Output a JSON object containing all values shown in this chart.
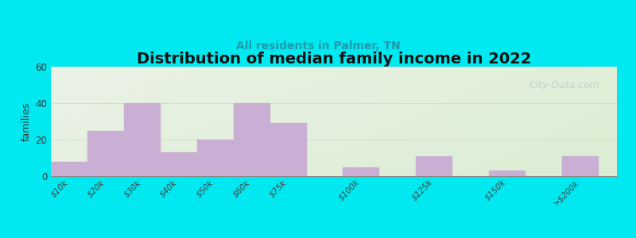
{
  "title": "Distribution of median family income in 2022",
  "subtitle": "All residents in Palmer, TN",
  "ylabel": "families",
  "categories": [
    "$10k",
    "$20k",
    "$30k",
    "$40k",
    "$50k",
    "$60k",
    "$75k",
    "$100k",
    "$125k",
    "$150k",
    ">$200k"
  ],
  "values": [
    8,
    25,
    40,
    13,
    20,
    40,
    29,
    5,
    11,
    3,
    11
  ],
  "x_positions": [
    0,
    1,
    2,
    3,
    4,
    5,
    6,
    8,
    10,
    12,
    14
  ],
  "bar_width": 1.0,
  "bar_color": "#c9afd4",
  "bar_edge_color": "#c9afd4",
  "ylim": [
    0,
    60
  ],
  "yticks": [
    0,
    20,
    40,
    60
  ],
  "xlim": [
    -0.5,
    15.0
  ],
  "background_outer": "#00e8f0",
  "bg_color_topleft": "#e8f5ee",
  "bg_color_topright": "#ddeef5",
  "bg_color_bottom": "#d0eee8",
  "title_fontsize": 14,
  "subtitle_fontsize": 10,
  "subtitle_color": "#2299aa",
  "ylabel_fontsize": 9,
  "watermark_text": "City-Data.com",
  "watermark_color": "#bbcccc"
}
